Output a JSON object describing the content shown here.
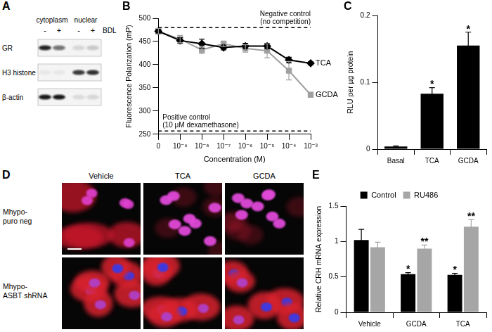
{
  "blot": {
    "panel": "A",
    "fractions": [
      "cytoplasm",
      "nuclear"
    ],
    "lanes": [
      "-",
      "+",
      "-",
      "+"
    ],
    "treatment": "BDL",
    "proteins": [
      "GR",
      "H3 histone",
      "β-actin"
    ]
  },
  "chart_data": [
    {
      "panel": "B",
      "type": "line",
      "categories": [
        "0",
        "10⁻⁹",
        "10⁻⁸",
        "10⁻⁷",
        "10⁻⁶",
        "10⁻⁵",
        "10⁻⁴",
        "10⁻³"
      ],
      "x_label": "Concentration (M)",
      "y_label": "Fluorescence Polarization (mP)",
      "ylim": [
        250,
        500
      ],
      "yticks": [
        250,
        300,
        350,
        400,
        450,
        500
      ],
      "grid": false,
      "series": [
        {
          "name": "TCA",
          "color": "#000000",
          "marker": "diamond",
          "values": [
            472,
            452,
            445,
            437,
            440,
            440,
            410,
            403
          ],
          "errors": [
            5,
            6,
            10,
            5,
            6,
            6,
            6,
            3
          ]
        },
        {
          "name": "GCDA",
          "color": "#a0a0a0",
          "marker": "square",
          "values": [
            472,
            455,
            432,
            445,
            435,
            430,
            387,
            335
          ],
          "errors": [
            6,
            8,
            8,
            6,
            8,
            15,
            20,
            5
          ]
        }
      ],
      "reference_lines": [
        {
          "value": 480,
          "line_style": "dashed",
          "label": [
            "Negative control",
            "(no competition)"
          ]
        },
        {
          "value": 257,
          "line_style": "dashed",
          "label": [
            "Positive control",
            "(10 μM dexamethasone)"
          ]
        }
      ]
    },
    {
      "panel": "C",
      "type": "bar",
      "categories": [
        "Basal",
        "TCA",
        "GCDA"
      ],
      "values": [
        0.004,
        0.083,
        0.155
      ],
      "errors": [
        0.001,
        0.009,
        0.02
      ],
      "significance": [
        null,
        "*",
        "*"
      ],
      "color": "#000000",
      "y_label": "RLU per µg protein",
      "ylim": [
        0,
        0.2
      ],
      "yticks": [
        0,
        0.1,
        0.2
      ],
      "grid": false
    },
    {
      "panel": "E",
      "type": "bar",
      "categories": [
        "Vehicle",
        "GCDA",
        "TCA"
      ],
      "series": [
        {
          "name": "Control",
          "color": "#000000",
          "values": [
            1.02,
            0.54,
            0.53
          ],
          "errors": [
            0.15,
            0.02,
            0.02
          ],
          "significance": [
            null,
            "*",
            "*"
          ]
        },
        {
          "name": "RU486",
          "color": "#a6a6a6",
          "values": [
            0.92,
            0.9,
            1.21
          ],
          "errors": [
            0.07,
            0.05,
            0.1
          ],
          "significance": [
            null,
            "**",
            "**"
          ]
        }
      ],
      "y_label": "Relative CRH mRNA expression",
      "ylim": [
        0,
        1.5
      ],
      "yticks": [
        0,
        0.5,
        1,
        1.5
      ],
      "grid": false,
      "legend": "top"
    }
  ],
  "micrographs": {
    "panel": "D",
    "columns": [
      "Vehicle",
      "TCA",
      "GCDA"
    ],
    "rows": [
      [
        "Mhypo-",
        "puro neg"
      ],
      [
        "Mhypo-",
        "ASBT shRNA"
      ]
    ]
  }
}
